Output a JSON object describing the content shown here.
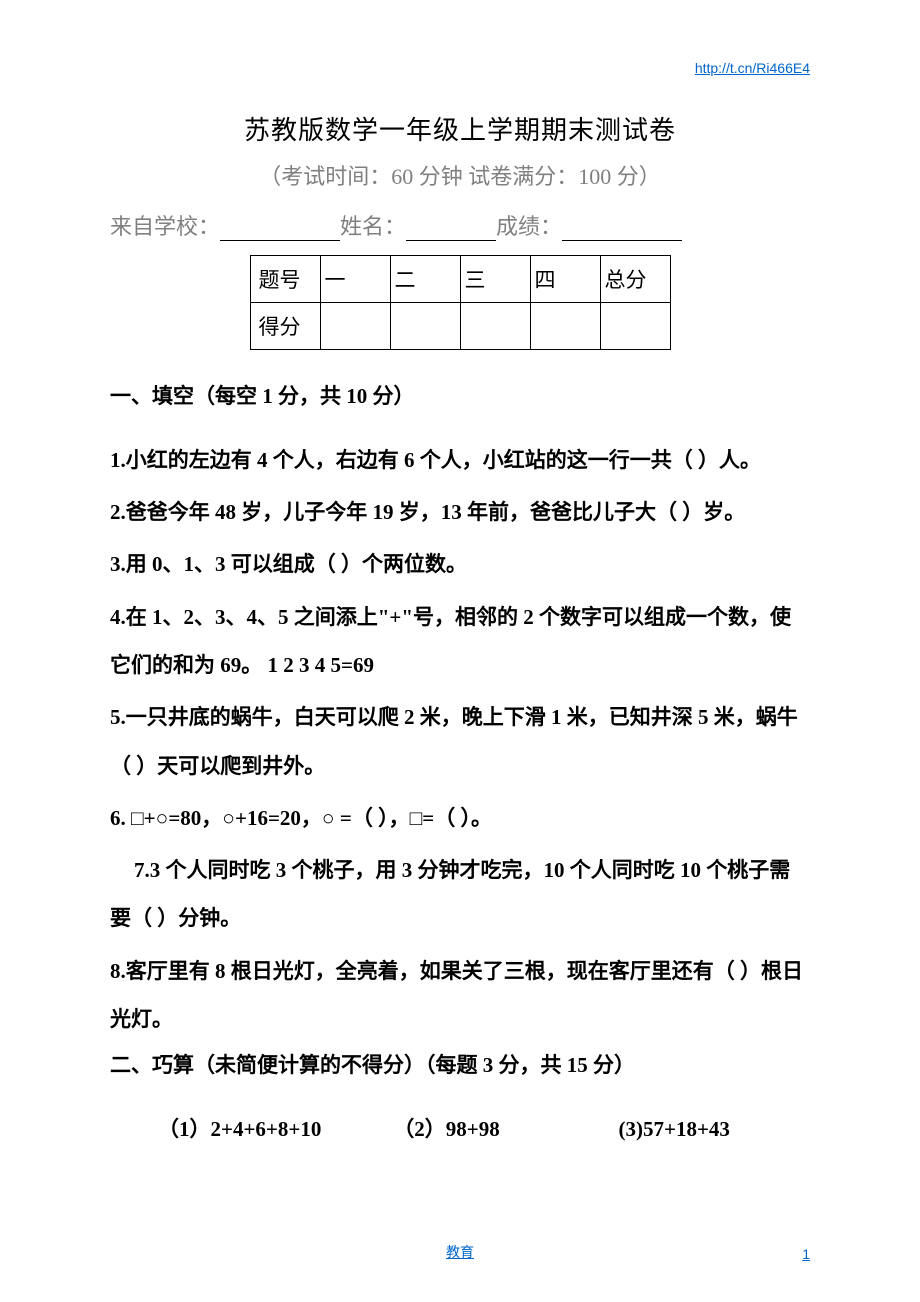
{
  "header_link": "http://t.cn/Ri466E4",
  "title": "苏教版数学一年级上学期期末测试卷",
  "subtitle": "（考试时间：60 分钟  试卷满分：100 分）",
  "info": {
    "school_label": "来自学校：",
    "name_label": "姓名：",
    "score_label": "成绩："
  },
  "score_table": {
    "row1": [
      "题号",
      "一",
      "二",
      "三",
      "四",
      "总分"
    ],
    "row2": [
      "得分",
      "",
      "",
      "",
      "",
      ""
    ]
  },
  "section1_title": "一、填空（每空 1 分，共 10 分）",
  "q1": "1.小红的左边有 4 个人，右边有 6 个人，小红站的这一行一共（   ）人。",
  "q2": "2.爸爸今年 48 岁，儿子今年 19 岁，13 年前，爸爸比儿子大（   ）岁。",
  "q3": "3.用 0、1、3 可以组成（    ）个两位数。",
  "q4": "4.在 1、2、3、4、5 之间添上\"+\"号，相邻的 2 个数字可以组成一个数，使它们的和为 69。        1   2   3   4   5=69",
  "q5": "5.一只井底的蜗牛，白天可以爬 2 米，晚上下滑 1 米，已知井深 5 米，蜗牛（    ）天可以爬到井外。",
  "q6": "6.  □+○=80，○+16=20，○ =（    ），□=（    ）。",
  "q7": "7.3 个人同时吃 3 个桃子，用 3 分钟才吃完，10 个人同时吃 10 个桃子需要（    ）分钟。",
  "q8": "8.客厅里有 8 根日光灯，全亮着，如果关了三根，现在客厅里还有（     ）根日光灯。",
  "section2_title": "二、巧算（未简便计算的不得分）（每题 3 分，共 15 分）",
  "calc": {
    "c1": "（1）2+4+6+8+10",
    "c2": "（2）98+98",
    "c3": "(3)57+18+43"
  },
  "footer_link": "教育",
  "page_num": "1"
}
